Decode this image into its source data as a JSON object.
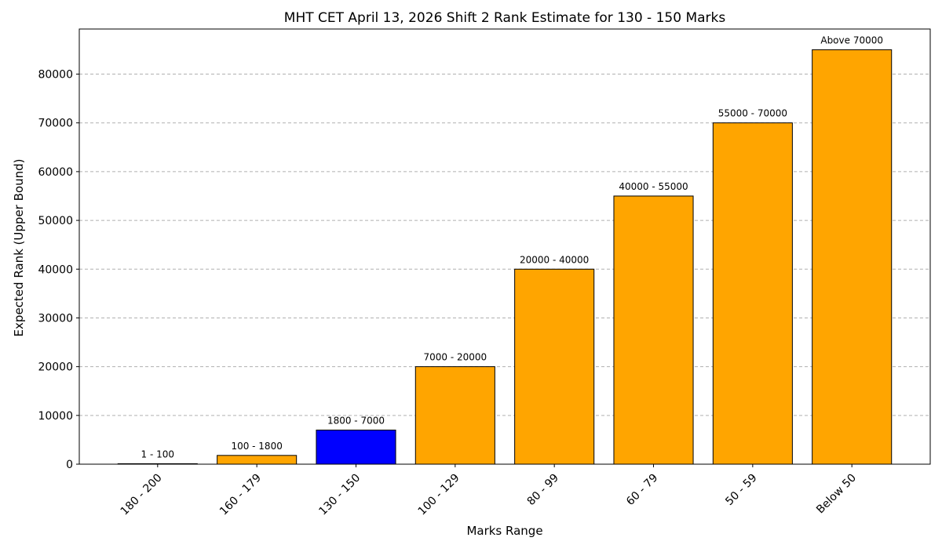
{
  "chart_data": {
    "type": "bar",
    "title": "MHT CET April 13, 2026 Shift 2 Rank Estimate for 130 - 150 Marks",
    "xlabel": "Marks Range",
    "ylabel": "Expected Rank (Upper Bound)",
    "categories": [
      "180 - 200",
      "160 - 179",
      "130 - 150",
      "100 - 129",
      "80 - 99",
      "60 - 79",
      "50 - 59",
      "Below 50"
    ],
    "values": [
      100,
      1800,
      7000,
      20000,
      40000,
      55000,
      70000,
      85000
    ],
    "data_labels": [
      "1 - 100",
      "100 - 1800",
      "1800 - 7000",
      "7000 - 20000",
      "20000 - 40000",
      "40000 - 55000",
      "55000 - 70000",
      "Above 70000"
    ],
    "bar_colors": [
      "#FFA500",
      "#FFA500",
      "#0000FF",
      "#FFA500",
      "#FFA500",
      "#FFA500",
      "#FFA500",
      "#FFA500"
    ],
    "highlight_category": "130 - 150",
    "ylim": [
      0,
      89250
    ],
    "yticks": [
      0,
      10000,
      20000,
      30000,
      40000,
      50000,
      60000,
      70000,
      80000
    ],
    "grid": "y-dashed",
    "xtick_rotation": 45
  }
}
